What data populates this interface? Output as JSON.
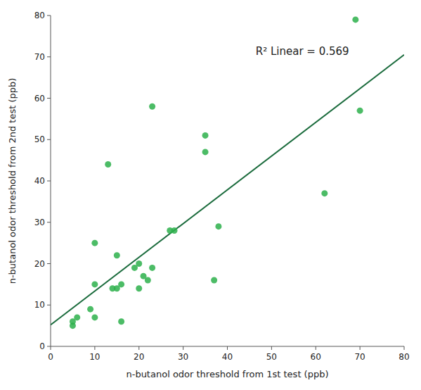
{
  "chart_data": {
    "type": "scatter",
    "x": [
      5,
      5,
      6,
      9,
      10,
      10,
      10,
      13,
      14,
      15,
      15,
      16,
      16,
      19,
      20,
      20,
      21,
      22,
      23,
      23,
      27,
      28,
      35,
      35,
      37,
      38,
      62,
      69,
      70
    ],
    "values": [
      5,
      6,
      7,
      9,
      15,
      25,
      7,
      44,
      14,
      14,
      22,
      15,
      6,
      19,
      14,
      20,
      17,
      16,
      19,
      58,
      28,
      28,
      47,
      51,
      16,
      29,
      37,
      79,
      57
    ],
    "color": "#2db04b",
    "fit_line": {
      "type": "line",
      "x": [
        0,
        80
      ],
      "values": [
        5.2,
        70.5
      ],
      "color": "#1a6b3c"
    },
    "annotation": "R² Linear = 0.569",
    "xlabel": "n-butanol odor threshold from 1st test (ppb)",
    "ylabel": "n-butanol odor threshold from 2nd test (ppb)",
    "xlim": [
      0,
      80
    ],
    "ylim": [
      0,
      80
    ],
    "xticks": [
      0,
      10,
      20,
      30,
      40,
      50,
      60,
      70,
      80
    ],
    "yticks": [
      0,
      10,
      20,
      30,
      40,
      50,
      60,
      70,
      80
    ],
    "grid": false
  }
}
